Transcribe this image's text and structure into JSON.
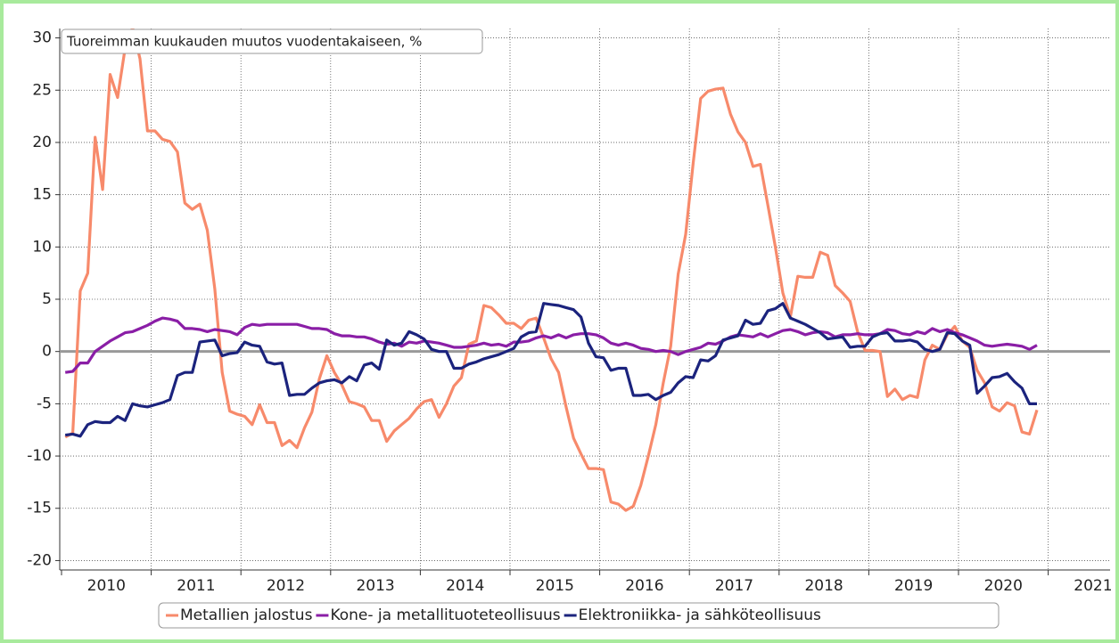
{
  "chart_data": {
    "type": "line",
    "title": "Tuoreimman kuukauden muutos vuodentakaiseen, %",
    "x": [
      "2010-01",
      "2010-02",
      "2010-03",
      "2010-04",
      "2010-05",
      "2010-06",
      "2010-07",
      "2010-08",
      "2010-09",
      "2010-10",
      "2010-11",
      "2010-12",
      "2011-01",
      "2011-02",
      "2011-03",
      "2011-04",
      "2011-05",
      "2011-06",
      "2011-07",
      "2011-08",
      "2011-09",
      "2011-10",
      "2011-11",
      "2011-12",
      "2012-01",
      "2012-02",
      "2012-03",
      "2012-04",
      "2012-05",
      "2012-06",
      "2012-07",
      "2012-08",
      "2012-09",
      "2012-10",
      "2012-11",
      "2012-12",
      "2013-01",
      "2013-02",
      "2013-03",
      "2013-04",
      "2013-05",
      "2013-06",
      "2013-07",
      "2013-08",
      "2013-09",
      "2013-10",
      "2013-11",
      "2013-12",
      "2014-01",
      "2014-02",
      "2014-03",
      "2014-04",
      "2014-05",
      "2014-06",
      "2014-07",
      "2014-08",
      "2014-09",
      "2014-10",
      "2014-11",
      "2014-12",
      "2015-01",
      "2015-02",
      "2015-03",
      "2015-04",
      "2015-05",
      "2015-06",
      "2015-07",
      "2015-08",
      "2015-09",
      "2015-10",
      "2015-11",
      "2015-12",
      "2016-01",
      "2016-02",
      "2016-03",
      "2016-04",
      "2016-05",
      "2016-06",
      "2016-07",
      "2016-08",
      "2016-09",
      "2016-10",
      "2016-11",
      "2016-12",
      "2017-01",
      "2017-02",
      "2017-03",
      "2017-04",
      "2017-05",
      "2017-06",
      "2017-07",
      "2017-08",
      "2017-09",
      "2017-10",
      "2017-11",
      "2017-12",
      "2018-01",
      "2018-02",
      "2018-03",
      "2018-04",
      "2018-05",
      "2018-06",
      "2018-07",
      "2018-08",
      "2018-09",
      "2018-10",
      "2018-11",
      "2018-12",
      "2019-01",
      "2019-02",
      "2019-03",
      "2019-04",
      "2019-05",
      "2019-06",
      "2019-07",
      "2019-08",
      "2019-09",
      "2019-10",
      "2019-11",
      "2019-12",
      "2020-01",
      "2020-02",
      "2020-03",
      "2020-04",
      "2020-05",
      "2020-06",
      "2020-07",
      "2020-08",
      "2020-09",
      "2020-10",
      "2020-11"
    ],
    "series": [
      {
        "name": "Metallien jalostus",
        "color": "#f78a6b",
        "values": [
          -8.2,
          -7.8,
          5.8,
          7.5,
          20.5,
          15.5,
          26.5,
          24.3,
          29,
          31,
          28,
          21.1,
          21.1,
          20.3,
          20.1,
          19.1,
          14.2,
          13.6,
          14.1,
          11.6,
          6,
          -2,
          -5.7,
          -6,
          -6.2,
          -7,
          -5.1,
          -6.8,
          -6.8,
          -9,
          -8.5,
          -9.2,
          -7.3,
          -5.8,
          -2.6,
          -0.4,
          -2,
          -3.2,
          -4.8,
          -5,
          -5.3,
          -6.6,
          -6.6,
          -8.6,
          -7.6,
          -7,
          -6.4,
          -5.5,
          -4.8,
          -4.6,
          -6.3,
          -5,
          -3.3,
          -2.5,
          0.7,
          1,
          4.4,
          4.2,
          3.5,
          2.7,
          2.7,
          2.2,
          3,
          3.2,
          1.3,
          -0.7,
          -2,
          -5.3,
          -8.3,
          -9.8,
          -11.2,
          -11.2,
          -11.3,
          -14.4,
          -14.6,
          -15.2,
          -14.8,
          -12.8,
          -10,
          -7,
          -3,
          0.5,
          7.4,
          11.2,
          18,
          24.2,
          24.9,
          25.1,
          25.2,
          22.7,
          21,
          20,
          17.7,
          17.9,
          14,
          10,
          5.6,
          3.3,
          7.2,
          7.1,
          7.1,
          9.5,
          9.2,
          6.3,
          5.6,
          4.8,
          1.9,
          0.1,
          0.1,
          0,
          -4.3,
          -3.6,
          -4.6,
          -4.2,
          -4.4,
          -0.8,
          0.6,
          0.2,
          1.6,
          2.4,
          1,
          0.4,
          -1.8,
          -3,
          -5.3,
          -5.7,
          -4.9,
          -5.2,
          -7.7,
          -7.9,
          -5.6
        ]
      },
      {
        "name": "Kone- ja metallituoteteollisuus",
        "color": "#8a1ea6",
        "values": [
          -2,
          -1.9,
          -1.1,
          -1.1,
          0,
          0.5,
          1,
          1.4,
          1.8,
          1.9,
          2.2,
          2.5,
          2.9,
          3.2,
          3.1,
          2.9,
          2.2,
          2.2,
          2.1,
          1.9,
          2.1,
          2,
          1.9,
          1.6,
          2.3,
          2.6,
          2.5,
          2.6,
          2.6,
          2.6,
          2.6,
          2.6,
          2.4,
          2.2,
          2.2,
          2.1,
          1.7,
          1.5,
          1.5,
          1.4,
          1.4,
          1.2,
          0.9,
          0.7,
          0.8,
          0.5,
          0.9,
          0.8,
          1,
          0.9,
          0.8,
          0.6,
          0.4,
          0.4,
          0.5,
          0.6,
          0.8,
          0.6,
          0.7,
          0.5,
          0.9,
          0.9,
          1,
          1.3,
          1.5,
          1.3,
          1.6,
          1.3,
          1.6,
          1.7,
          1.7,
          1.6,
          1.3,
          0.8,
          0.6,
          0.8,
          0.6,
          0.3,
          0.2,
          0,
          0.1,
          0,
          -0.3,
          0,
          0.2,
          0.4,
          0.8,
          0.7,
          1,
          1.4,
          1.6,
          1.5,
          1.4,
          1.7,
          1.4,
          1.7,
          2,
          2.1,
          1.9,
          1.6,
          1.8,
          1.9,
          1.8,
          1.4,
          1.6,
          1.6,
          1.7,
          1.6,
          1.6,
          1.7,
          2.1,
          2,
          1.7,
          1.6,
          1.9,
          1.7,
          2.2,
          1.9,
          2.1,
          1.8,
          1.6,
          1.3,
          1,
          0.6,
          0.5,
          0.6,
          0.7,
          0.6,
          0.5,
          0.2,
          0.6
        ]
      },
      {
        "name": "Elektroniikka- ja sähköteollisuus",
        "color": "#1b237d",
        "values": [
          -8,
          -7.9,
          -8.1,
          -7,
          -6.7,
          -6.8,
          -6.8,
          -6.2,
          -6.6,
          -5,
          -5.2,
          -5.3,
          -5.1,
          -4.9,
          -4.6,
          -2.3,
          -2,
          -2,
          0.9,
          1,
          1.1,
          -0.4,
          -0.2,
          -0.1,
          0.9,
          0.6,
          0.5,
          -1,
          -1.2,
          -1.1,
          -4.2,
          -4.1,
          -4.1,
          -3.5,
          -3,
          -2.8,
          -2.7,
          -3,
          -2.4,
          -2.8,
          -1.3,
          -1.1,
          -1.7,
          1.1,
          0.6,
          0.8,
          1.9,
          1.6,
          1.2,
          0.2,
          0,
          0,
          -1.6,
          -1.6,
          -1.2,
          -1,
          -0.7,
          -0.5,
          -0.3,
          0,
          0.3,
          1.4,
          1.8,
          1.9,
          4.6,
          4.5,
          4.4,
          4.2,
          4,
          3.3,
          0.8,
          -0.5,
          -0.6,
          -1.8,
          -1.6,
          -1.6,
          -4.2,
          -4.2,
          -4.1,
          -4.6,
          -4.2,
          -3.9,
          -3,
          -2.4,
          -2.5,
          -0.8,
          -0.9,
          -0.4,
          1.1,
          1.3,
          1.5,
          3,
          2.6,
          2.7,
          3.9,
          4.1,
          4.6,
          3.2,
          2.9,
          2.6,
          2.2,
          1.8,
          1.2,
          1.3,
          1.4,
          0.4,
          0.5,
          0.5,
          1.4,
          1.7,
          1.8,
          1,
          1,
          1.1,
          0.9,
          0.2,
          0,
          0.2,
          1.8,
          1.7,
          1,
          0.6,
          -4,
          -3.3,
          -2.5,
          -2.4,
          -2.1,
          -2.9,
          -3.5,
          -5,
          -5
        ]
      }
    ],
    "xlim": [
      2009.98,
      2021.69
    ],
    "xticks": [
      2010,
      2011,
      2012,
      2013,
      2014,
      2015,
      2016,
      2017,
      2018,
      2019,
      2020,
      2021
    ],
    "ylim": [
      -20.9,
      30.9
    ],
    "yticks": [
      -20,
      -15,
      -10,
      -5,
      0,
      5,
      10,
      15,
      20,
      25,
      30
    ],
    "grid": true,
    "legend": "bottom"
  }
}
